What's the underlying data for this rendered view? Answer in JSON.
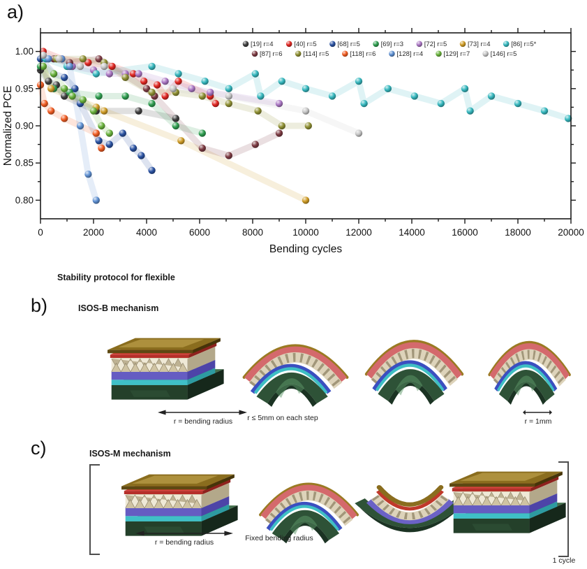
{
  "panel_a": {
    "label": "a)"
  },
  "section_title": "Stability protocol for flexible",
  "panel_b": {
    "label": "b)",
    "title": "ISOS-B mechanism",
    "captions": [
      "r = bending radius",
      "r ≤ 5mm on each step",
      "r = 1mm"
    ]
  },
  "panel_c": {
    "label": "c)",
    "title": "ISOS-M mechanism",
    "captions": [
      "r = bending radius",
      "Fixed bending radius",
      "1 cycle"
    ]
  },
  "chart_data": {
    "type": "scatter",
    "title": "",
    "xlabel": "Bending cycles",
    "ylabel": "Normalized PCE",
    "xlim": [
      0,
      20000
    ],
    "ylim": [
      0.775,
      1.025
    ],
    "x_major_step": 2000,
    "x_minor_step": 1000,
    "y_major_step": 0.05,
    "y_minor_step": 0.025,
    "x_tick_labels": [
      0,
      2000,
      4000,
      6000,
      8000,
      10000,
      12000,
      14000,
      16000,
      18000,
      20000
    ],
    "y_tick_labels": [
      "1.00",
      "0.95",
      "0.90",
      "0.85",
      "0.80"
    ],
    "grid": false,
    "legend_position": "inside-top-center",
    "marker": "sphere",
    "series": [
      {
        "name": "[19] r=4",
        "color": "#3f3f3f",
        "points": [
          [
            0,
            0.975
          ],
          [
            300,
            0.96
          ],
          [
            600,
            0.955
          ],
          [
            900,
            0.94
          ],
          [
            2100,
            0.92
          ],
          [
            3700,
            0.92
          ],
          [
            5100,
            0.91
          ]
        ]
      },
      {
        "name": "[40] r=5",
        "color": "#e02722",
        "points": [
          [
            100,
            1.0
          ],
          [
            800,
            0.99
          ],
          [
            1800,
            0.985
          ],
          [
            2700,
            0.98
          ],
          [
            3500,
            0.97
          ],
          [
            3900,
            0.96
          ],
          [
            4400,
            0.955
          ],
          [
            4700,
            0.94
          ],
          [
            5200,
            0.96
          ],
          [
            6400,
            0.94
          ],
          [
            6600,
            0.93
          ]
        ]
      },
      {
        "name": "[68] r=5",
        "color": "#2a52a2",
        "points": [
          [
            0,
            0.99
          ],
          [
            500,
            0.97
          ],
          [
            900,
            0.965
          ],
          [
            1300,
            0.95
          ],
          [
            1500,
            0.93
          ],
          [
            2200,
            0.88
          ],
          [
            2600,
            0.875
          ],
          [
            3100,
            0.89
          ],
          [
            3500,
            0.87
          ],
          [
            3800,
            0.86
          ],
          [
            4200,
            0.84
          ]
        ]
      },
      {
        "name": "[69] r=3",
        "color": "#2f9e50",
        "points": [
          [
            0,
            0.98
          ],
          [
            500,
            0.95
          ],
          [
            1100,
            0.945
          ],
          [
            2200,
            0.94
          ],
          [
            3200,
            0.94
          ],
          [
            4200,
            0.93
          ],
          [
            5100,
            0.9
          ],
          [
            6100,
            0.89
          ]
        ]
      },
      {
        "name": "[72] r=5",
        "color": "#ab77c4",
        "points": [
          [
            1200,
            0.98
          ],
          [
            2000,
            0.975
          ],
          [
            2600,
            0.97
          ],
          [
            3200,
            0.97
          ],
          [
            3700,
            0.97
          ],
          [
            4700,
            0.96
          ],
          [
            5700,
            0.95
          ],
          [
            6400,
            0.945
          ],
          [
            9000,
            0.93
          ]
        ]
      },
      {
        "name": "[73] r=4",
        "color": "#cf9c26",
        "points": [
          [
            100,
            0.98
          ],
          [
            400,
            0.95
          ],
          [
            2100,
            0.925
          ],
          [
            2400,
            0.92
          ],
          [
            5300,
            0.88
          ],
          [
            10000,
            0.8
          ]
        ]
      },
      {
        "name": "[86] r=5*",
        "color": "#35b7be",
        "points": [
          [
            200,
            0.99
          ],
          [
            1000,
            0.98
          ],
          [
            2100,
            0.97
          ],
          [
            4200,
            0.98
          ],
          [
            5200,
            0.97
          ],
          [
            6200,
            0.96
          ],
          [
            7100,
            0.95
          ],
          [
            8100,
            0.97
          ],
          [
            8300,
            0.94
          ],
          [
            9100,
            0.96
          ],
          [
            10000,
            0.95
          ],
          [
            11000,
            0.94
          ],
          [
            12000,
            0.96
          ],
          [
            12200,
            0.93
          ],
          [
            13100,
            0.95
          ],
          [
            14100,
            0.94
          ],
          [
            15100,
            0.93
          ],
          [
            16000,
            0.95
          ],
          [
            16200,
            0.92
          ],
          [
            17000,
            0.94
          ],
          [
            18000,
            0.93
          ],
          [
            19000,
            0.92
          ],
          [
            19900,
            0.91
          ]
        ]
      },
      {
        "name": "[87] r=6",
        "color": "#7d3b43",
        "points": [
          [
            500,
            0.99
          ],
          [
            1100,
            0.985
          ],
          [
            2200,
            0.99
          ],
          [
            4000,
            0.95
          ],
          [
            4300,
            0.94
          ],
          [
            6100,
            0.87
          ],
          [
            7100,
            0.86
          ],
          [
            8100,
            0.875
          ],
          [
            9000,
            0.89
          ]
        ]
      },
      {
        "name": "[114] r=5",
        "color": "#8f9033",
        "points": [
          [
            600,
            0.99
          ],
          [
            1600,
            0.99
          ],
          [
            2400,
            0.985
          ],
          [
            3200,
            0.965
          ],
          [
            4200,
            0.945
          ],
          [
            5100,
            0.945
          ],
          [
            6100,
            0.94
          ],
          [
            7100,
            0.93
          ],
          [
            8200,
            0.92
          ],
          [
            9100,
            0.9
          ],
          [
            10100,
            0.9
          ]
        ]
      },
      {
        "name": "[118] r=6",
        "color": "#f05c22",
        "points": [
          [
            0,
            0.955
          ],
          [
            150,
            0.93
          ],
          [
            400,
            0.92
          ],
          [
            900,
            0.91
          ],
          [
            2100,
            0.89
          ],
          [
            2300,
            0.87
          ]
        ]
      },
      {
        "name": "[128] r=4",
        "color": "#5e90d2",
        "points": [
          [
            300,
            0.99
          ],
          [
            800,
            0.99
          ],
          [
            1100,
            0.98
          ],
          [
            1500,
            0.9
          ],
          [
            1800,
            0.835
          ],
          [
            2100,
            0.8
          ]
        ]
      },
      {
        "name": "[129] r=7",
        "color": "#69b23c",
        "points": [
          [
            100,
            0.98
          ],
          [
            500,
            0.97
          ],
          [
            900,
            0.95
          ],
          [
            1200,
            0.94
          ],
          [
            1600,
            0.935
          ],
          [
            2000,
            0.92
          ],
          [
            2300,
            0.9
          ],
          [
            2600,
            0.89
          ]
        ]
      },
      {
        "name": "[146] r=5",
        "color": "#c6c6c6",
        "points": [
          [
            100,
            0.995
          ],
          [
            700,
            0.99
          ],
          [
            1500,
            0.98
          ],
          [
            2400,
            0.98
          ],
          [
            5000,
            0.95
          ],
          [
            7100,
            0.94
          ],
          [
            10000,
            0.92
          ],
          [
            12000,
            0.89
          ]
        ]
      }
    ]
  }
}
